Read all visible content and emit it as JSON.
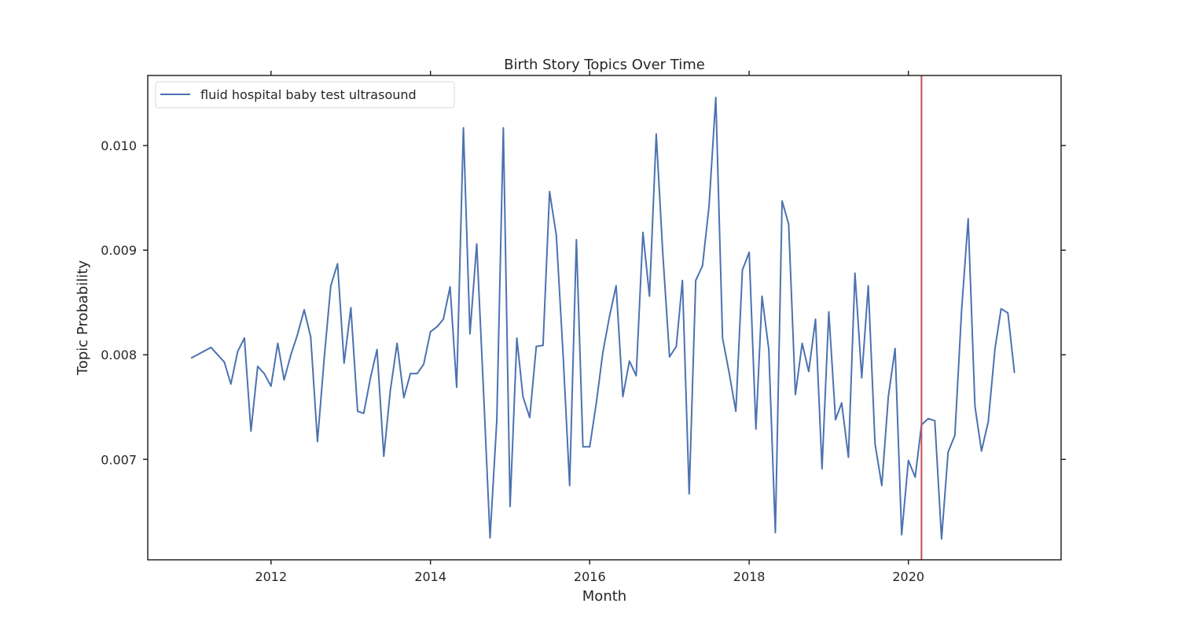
{
  "chart_data": {
    "type": "line",
    "title": "Birth Story Topics Over Time",
    "xlabel": "Month",
    "ylabel": "Topic Probability",
    "xlim": [
      "2010-06-15",
      "2021-12-01"
    ],
    "ylim": [
      0.00604,
      0.01067
    ],
    "x_ticks": [
      {
        "date": "2012-01-01",
        "label": "2012"
      },
      {
        "date": "2014-01-01",
        "label": "2014"
      },
      {
        "date": "2016-01-01",
        "label": "2016"
      },
      {
        "date": "2018-01-01",
        "label": "2018"
      },
      {
        "date": "2020-01-01",
        "label": "2020"
      }
    ],
    "y_ticks": [
      {
        "value": 0.007,
        "label": "0.007"
      },
      {
        "value": 0.008,
        "label": "0.008"
      },
      {
        "value": 0.009,
        "label": "0.009"
      },
      {
        "value": 0.01,
        "label": "0.010"
      }
    ],
    "grid": false,
    "legend_position": "top-left",
    "vline": {
      "date": "2020-03-01",
      "color": "#c44e52"
    },
    "series": [
      {
        "name": "fluid hospital baby test ultrasound",
        "color": "#4c72b0",
        "points": [
          [
            "2011-01-01",
            0.00797
          ],
          [
            "2011-04-01",
            0.00807
          ],
          [
            "2011-06-01",
            0.00793
          ],
          [
            "2011-07-01",
            0.00772
          ],
          [
            "2011-08-01",
            0.00803
          ],
          [
            "2011-09-01",
            0.00816
          ],
          [
            "2011-10-01",
            0.00727
          ],
          [
            "2011-11-01",
            0.00789
          ],
          [
            "2011-12-01",
            0.00782
          ],
          [
            "2012-01-01",
            0.0077
          ],
          [
            "2012-02-01",
            0.00811
          ],
          [
            "2012-03-01",
            0.00776
          ],
          [
            "2012-04-01",
            0.008
          ],
          [
            "2012-05-01",
            0.00819
          ],
          [
            "2012-06-01",
            0.00843
          ],
          [
            "2012-07-01",
            0.00817
          ],
          [
            "2012-08-01",
            0.00717
          ],
          [
            "2012-09-01",
            0.00797
          ],
          [
            "2012-10-01",
            0.00866
          ],
          [
            "2012-11-01",
            0.00887
          ],
          [
            "2012-12-01",
            0.00792
          ],
          [
            "2013-01-01",
            0.00845
          ],
          [
            "2013-02-01",
            0.00746
          ],
          [
            "2013-03-01",
            0.00744
          ],
          [
            "2013-04-01",
            0.00778
          ],
          [
            "2013-05-01",
            0.00805
          ],
          [
            "2013-06-01",
            0.00703
          ],
          [
            "2013-07-01",
            0.00766
          ],
          [
            "2013-08-01",
            0.00811
          ],
          [
            "2013-09-01",
            0.00759
          ],
          [
            "2013-10-01",
            0.00782
          ],
          [
            "2013-11-01",
            0.00782
          ],
          [
            "2013-12-01",
            0.00791
          ],
          [
            "2014-01-01",
            0.00822
          ],
          [
            "2014-02-01",
            0.00827
          ],
          [
            "2014-03-01",
            0.00834
          ],
          [
            "2014-04-01",
            0.00865
          ],
          [
            "2014-05-01",
            0.00769
          ],
          [
            "2014-06-01",
            0.01017
          ],
          [
            "2014-07-01",
            0.0082
          ],
          [
            "2014-08-01",
            0.00906
          ],
          [
            "2014-09-01",
            0.00766
          ],
          [
            "2014-10-01",
            0.00625
          ],
          [
            "2014-11-01",
            0.00737
          ],
          [
            "2014-12-01",
            0.01017
          ],
          [
            "2015-01-01",
            0.00655
          ],
          [
            "2015-02-01",
            0.00816
          ],
          [
            "2015-03-01",
            0.0076
          ],
          [
            "2015-04-01",
            0.0074
          ],
          [
            "2015-05-01",
            0.00808
          ],
          [
            "2015-06-01",
            0.00809
          ],
          [
            "2015-07-01",
            0.00956
          ],
          [
            "2015-08-01",
            0.00914
          ],
          [
            "2015-09-01",
            0.008
          ],
          [
            "2015-10-01",
            0.00675
          ],
          [
            "2015-11-01",
            0.0091
          ],
          [
            "2015-12-01",
            0.00712
          ],
          [
            "2016-01-01",
            0.00712
          ],
          [
            "2016-02-01",
            0.00755
          ],
          [
            "2016-03-01",
            0.00802
          ],
          [
            "2016-04-01",
            0.00837
          ],
          [
            "2016-05-01",
            0.00866
          ],
          [
            "2016-06-01",
            0.0076
          ],
          [
            "2016-07-01",
            0.00794
          ],
          [
            "2016-08-01",
            0.0078
          ],
          [
            "2016-09-01",
            0.00917
          ],
          [
            "2016-10-01",
            0.00856
          ],
          [
            "2016-11-01",
            0.01011
          ],
          [
            "2016-12-01",
            0.00897
          ],
          [
            "2017-01-01",
            0.00798
          ],
          [
            "2017-02-01",
            0.00808
          ],
          [
            "2017-03-01",
            0.00871
          ],
          [
            "2017-04-01",
            0.00667
          ],
          [
            "2017-05-01",
            0.00871
          ],
          [
            "2017-06-01",
            0.00885
          ],
          [
            "2017-07-01",
            0.00942
          ],
          [
            "2017-08-01",
            0.01046
          ],
          [
            "2017-09-01",
            0.00816
          ],
          [
            "2017-10-01",
            0.00783
          ],
          [
            "2017-11-01",
            0.00746
          ],
          [
            "2017-12-01",
            0.00881
          ],
          [
            "2018-01-01",
            0.00898
          ],
          [
            "2018-02-01",
            0.00729
          ],
          [
            "2018-03-01",
            0.00856
          ],
          [
            "2018-04-01",
            0.00805
          ],
          [
            "2018-05-01",
            0.0063
          ],
          [
            "2018-06-01",
            0.00947
          ],
          [
            "2018-07-01",
            0.00925
          ],
          [
            "2018-08-01",
            0.00762
          ],
          [
            "2018-09-01",
            0.00811
          ],
          [
            "2018-10-01",
            0.00784
          ],
          [
            "2018-11-01",
            0.00834
          ],
          [
            "2018-12-01",
            0.00691
          ],
          [
            "2019-01-01",
            0.00841
          ],
          [
            "2019-02-01",
            0.00738
          ],
          [
            "2019-03-01",
            0.00754
          ],
          [
            "2019-04-01",
            0.00702
          ],
          [
            "2019-05-01",
            0.00878
          ],
          [
            "2019-06-01",
            0.00778
          ],
          [
            "2019-07-01",
            0.00866
          ],
          [
            "2019-08-01",
            0.00715
          ],
          [
            "2019-09-01",
            0.00675
          ],
          [
            "2019-10-01",
            0.0076
          ],
          [
            "2019-11-01",
            0.00806
          ],
          [
            "2019-12-01",
            0.00628
          ],
          [
            "2020-01-01",
            0.00699
          ],
          [
            "2020-02-01",
            0.00683
          ],
          [
            "2020-03-01",
            0.00733
          ],
          [
            "2020-04-01",
            0.00739
          ],
          [
            "2020-05-01",
            0.00737
          ],
          [
            "2020-06-01",
            0.00624
          ],
          [
            "2020-07-01",
            0.00707
          ],
          [
            "2020-08-01",
            0.00723
          ],
          [
            "2020-09-01",
            0.00843
          ],
          [
            "2020-10-01",
            0.0093
          ],
          [
            "2020-11-01",
            0.00751
          ],
          [
            "2020-12-01",
            0.00708
          ],
          [
            "2021-01-01",
            0.00736
          ],
          [
            "2021-02-01",
            0.00806
          ],
          [
            "2021-03-01",
            0.00844
          ],
          [
            "2021-04-01",
            0.0084
          ],
          [
            "2021-05-01",
            0.00783
          ]
        ]
      }
    ]
  }
}
